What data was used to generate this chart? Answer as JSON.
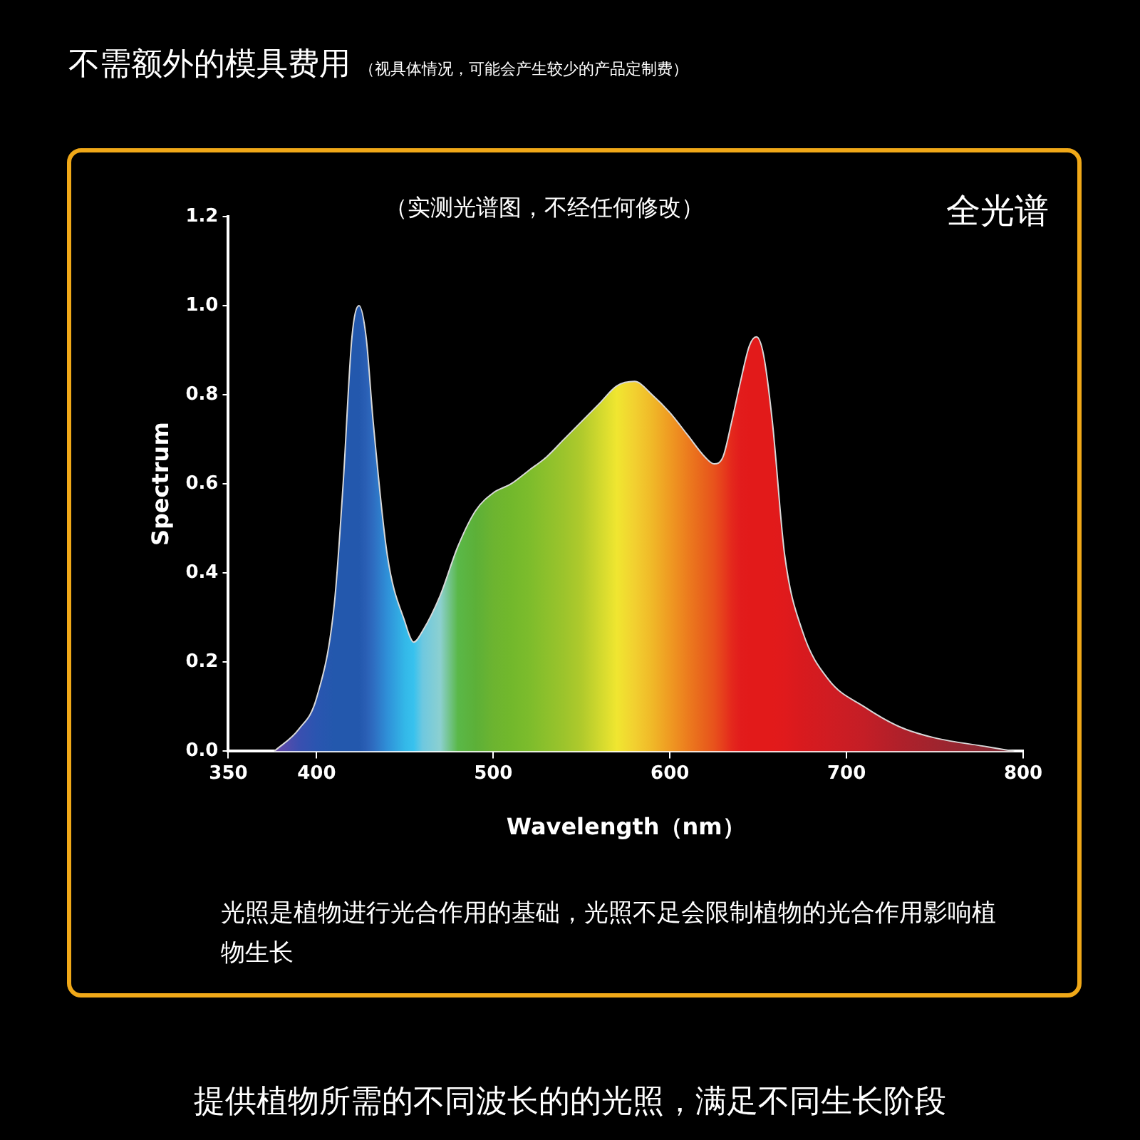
{
  "chart_data": {
    "type": "area",
    "title": "不需额外的模具费用",
    "subtitle": "（视具体情况，可能会产生较少的产品定制费）",
    "xlabel": "Wavelength（nm）",
    "ylabel": "Spectrum",
    "annotations": [
      "（实测光谱图，不经任何修改）",
      "全光谱",
      "光照是植物进行光合作用的基础，光照不足会限制植物的光合作用影响植物生长",
      "提供植物所需的不同波长的的光照，满足不同生长阶段"
    ],
    "x": [
      376,
      390,
      400,
      410,
      415,
      420,
      424,
      428,
      432,
      440,
      450,
      455,
      460,
      470,
      480,
      490,
      500,
      510,
      520,
      530,
      540,
      550,
      560,
      570,
      580,
      590,
      600,
      610,
      620,
      625,
      630,
      635,
      640,
      645,
      649,
      653,
      658,
      665,
      675,
      690,
      710,
      730,
      750,
      780,
      795
    ],
    "series": [
      {
        "color": "#d8d8d8",
        "values": [
          0,
          0.05,
          0.12,
          0.33,
          0.6,
          0.93,
          1.0,
          0.93,
          0.74,
          0.44,
          0.29,
          0.245,
          0.27,
          0.35,
          0.46,
          0.54,
          0.58,
          0.6,
          0.63,
          0.66,
          0.7,
          0.74,
          0.78,
          0.82,
          0.83,
          0.8,
          0.76,
          0.71,
          0.66,
          0.645,
          0.66,
          0.74,
          0.83,
          0.91,
          0.93,
          0.89,
          0.74,
          0.44,
          0.27,
          0.16,
          0.1,
          0.055,
          0.03,
          0.01,
          0
        ],
        "colors": [
          "#6a4aa8",
          "#3a4fb0",
          "#2a55b0",
          "#2358ad",
          "#2358ad",
          "#2358ad",
          "#2358ad",
          "#2a5fb5",
          "#2e6cc0",
          "#2f90d8",
          "#33b8e8",
          "#38c2ee",
          "#6ec8e0",
          "#8cd0d0",
          "#5ab848",
          "#5cb038",
          "#6cb430",
          "#72b82c",
          "#7cbc2c",
          "#8cc02c",
          "#9cc42c",
          "#b0ca2c",
          "#d0d82e",
          "#f0e630",
          "#f2d030",
          "#f0b828",
          "#ef9a22",
          "#ec7c1e",
          "#e8601c",
          "#e8521c",
          "#e63e1c",
          "#e4281c",
          "#e21c1c",
          "#e21a1a",
          "#e21a1a",
          "#e21a1a",
          "#e21a1a",
          "#e01a1c",
          "#d81a1e",
          "#d01c22",
          "#c41e26",
          "#b0202a",
          "#a0242e",
          "#8a2a34",
          "#7a2c38"
        ]
      }
    ],
    "xlim": [
      350,
      800
    ],
    "xticks": [
      350,
      400,
      500,
      600,
      700,
      800
    ],
    "ylim": [
      0,
      1.2
    ],
    "yticks": [
      {
        "value": 0,
        "label": "0.0"
      },
      {
        "value": 0.2,
        "label": "0.2"
      },
      {
        "value": 0.4,
        "label": "0.4"
      },
      {
        "value": 0.6,
        "label": "0.6"
      },
      {
        "value": 0.8,
        "label": "0.8"
      },
      {
        "value": 1.0,
        "label": "1.0"
      },
      {
        "value": 1.2,
        "label": "1.2"
      }
    ],
    "grid": false,
    "legend": false
  }
}
